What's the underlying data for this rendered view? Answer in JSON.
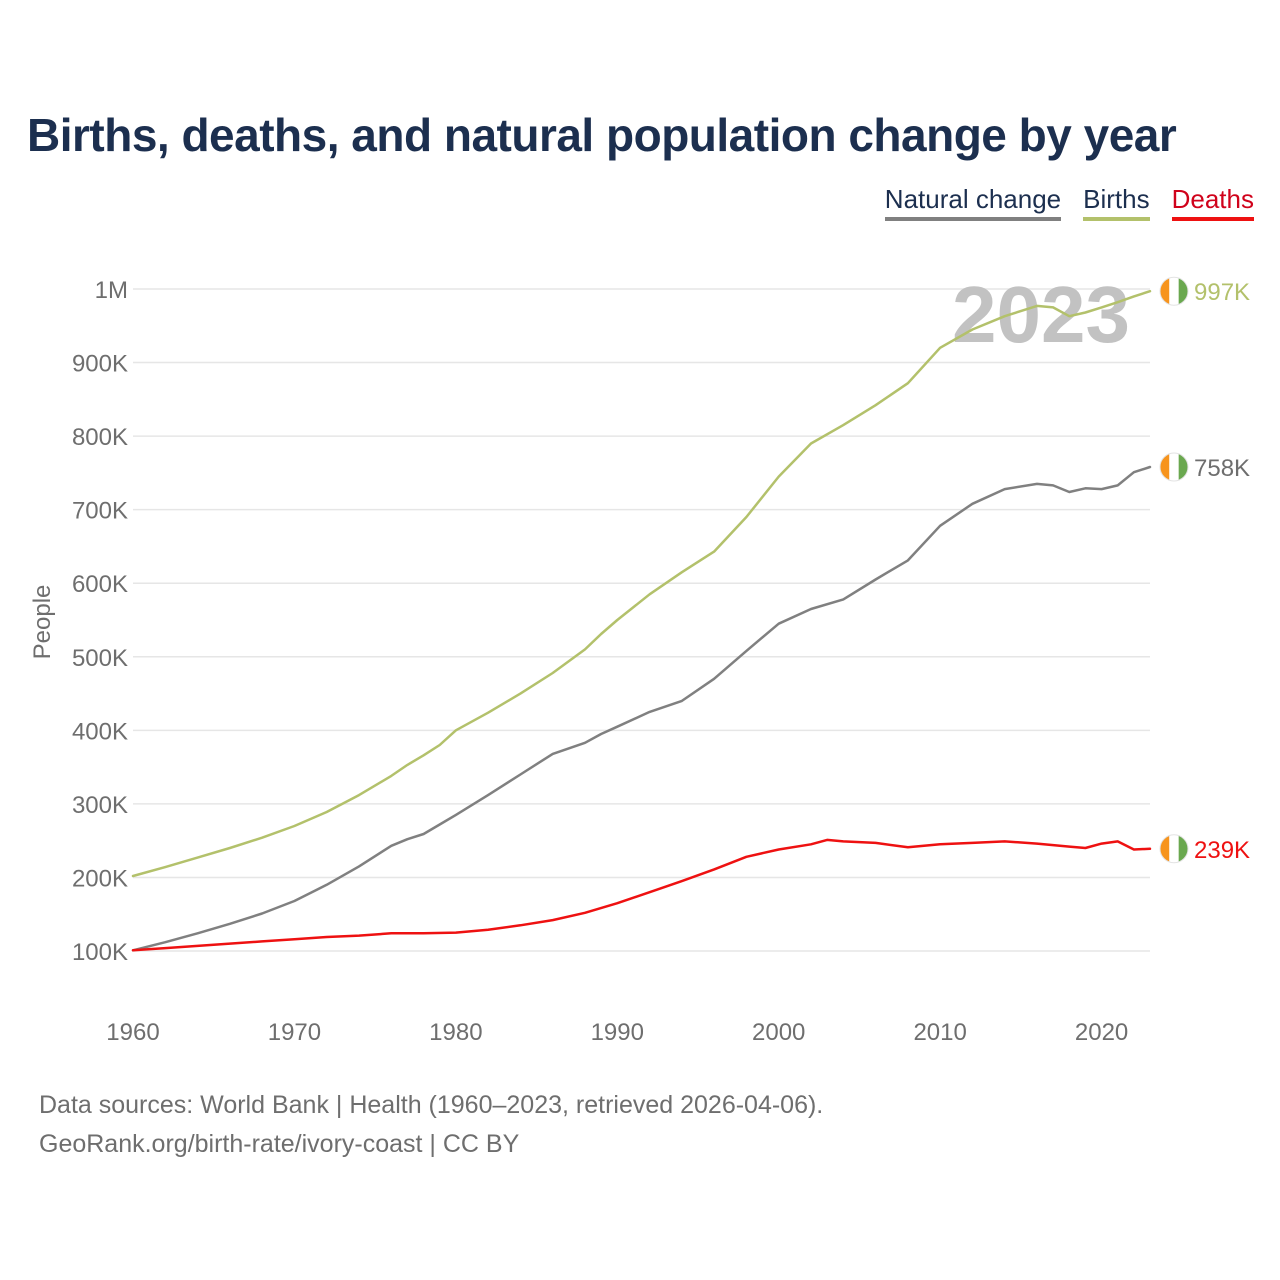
{
  "title": "Births, deaths, and natural population change by year",
  "legend": [
    {
      "label": "Natural change",
      "color": "#808080"
    },
    {
      "label": "Births",
      "color": "#b3c16b"
    },
    {
      "label": "Deaths",
      "color": "#ee1111"
    }
  ],
  "year_label": "2023",
  "footer": {
    "sources": "Data sources: World Bank | Health (1960–2023, retrieved 2026-04-06).",
    "credit": "GeoRank.org/birth-rate/ivory-coast | CC BY"
  },
  "chart_data": {
    "type": "line",
    "title": "Births, deaths, and natural population change by year",
    "xlabel": "",
    "ylabel": "People",
    "xlim": [
      1960,
      2023
    ],
    "ylim": [
      100000,
      1000000
    ],
    "grid": true,
    "legend_position": "top-right",
    "y_ticks": [
      {
        "value": 100000,
        "label": "100K"
      },
      {
        "value": 200000,
        "label": "200K"
      },
      {
        "value": 300000,
        "label": "300K"
      },
      {
        "value": 400000,
        "label": "400K"
      },
      {
        "value": 500000,
        "label": "500K"
      },
      {
        "value": 600000,
        "label": "600K"
      },
      {
        "value": 700000,
        "label": "700K"
      },
      {
        "value": 800000,
        "label": "800K"
      },
      {
        "value": 900000,
        "label": "900K"
      },
      {
        "value": 1000000,
        "label": "1M"
      }
    ],
    "x_ticks": [
      {
        "value": 1960,
        "label": "1960"
      },
      {
        "value": 1970,
        "label": "1970"
      },
      {
        "value": 1980,
        "label": "1980"
      },
      {
        "value": 1990,
        "label": "1990"
      },
      {
        "value": 2000,
        "label": "2000"
      },
      {
        "value": 2010,
        "label": "2010"
      },
      {
        "value": 2020,
        "label": "2020"
      }
    ],
    "series": [
      {
        "name": "Births",
        "color": "#b3c16b",
        "end_label": "997K",
        "points": [
          [
            1960,
            202000
          ],
          [
            1962,
            214000
          ],
          [
            1964,
            227000
          ],
          [
            1966,
            240000
          ],
          [
            1968,
            254000
          ],
          [
            1970,
            270000
          ],
          [
            1972,
            289000
          ],
          [
            1974,
            312000
          ],
          [
            1976,
            338000
          ],
          [
            1977,
            353000
          ],
          [
            1978,
            366000
          ],
          [
            1979,
            380000
          ],
          [
            1980,
            400000
          ],
          [
            1982,
            424000
          ],
          [
            1984,
            450000
          ],
          [
            1986,
            478000
          ],
          [
            1988,
            510000
          ],
          [
            1989,
            531000
          ],
          [
            1990,
            550000
          ],
          [
            1992,
            585000
          ],
          [
            1994,
            615000
          ],
          [
            1996,
            643000
          ],
          [
            1998,
            690000
          ],
          [
            2000,
            745000
          ],
          [
            2002,
            790000
          ],
          [
            2004,
            815000
          ],
          [
            2006,
            842000
          ],
          [
            2008,
            872000
          ],
          [
            2010,
            920000
          ],
          [
            2012,
            945000
          ],
          [
            2014,
            963000
          ],
          [
            2016,
            977000
          ],
          [
            2017,
            975000
          ],
          [
            2018,
            963000
          ],
          [
            2019,
            968000
          ],
          [
            2020,
            975000
          ],
          [
            2021,
            982000
          ],
          [
            2022,
            990000
          ],
          [
            2023,
            997000
          ]
        ]
      },
      {
        "name": "Natural change",
        "color": "#808080",
        "end_label": "758K",
        "points": [
          [
            1960,
            101000
          ],
          [
            1962,
            112000
          ],
          [
            1964,
            124000
          ],
          [
            1966,
            137000
          ],
          [
            1968,
            151000
          ],
          [
            1970,
            168000
          ],
          [
            1972,
            190000
          ],
          [
            1974,
            215000
          ],
          [
            1976,
            243000
          ],
          [
            1977,
            252000
          ],
          [
            1978,
            259000
          ],
          [
            1979,
            272000
          ],
          [
            1980,
            285000
          ],
          [
            1982,
            312000
          ],
          [
            1984,
            340000
          ],
          [
            1986,
            368000
          ],
          [
            1988,
            383000
          ],
          [
            1989,
            395000
          ],
          [
            1990,
            405000
          ],
          [
            1992,
            425000
          ],
          [
            1994,
            440000
          ],
          [
            1996,
            470000
          ],
          [
            1998,
            508000
          ],
          [
            2000,
            545000
          ],
          [
            2002,
            565000
          ],
          [
            2004,
            578000
          ],
          [
            2006,
            605000
          ],
          [
            2008,
            631000
          ],
          [
            2010,
            678000
          ],
          [
            2012,
            708000
          ],
          [
            2014,
            728000
          ],
          [
            2016,
            735000
          ],
          [
            2017,
            733000
          ],
          [
            2018,
            724000
          ],
          [
            2019,
            729000
          ],
          [
            2020,
            728000
          ],
          [
            2021,
            733000
          ],
          [
            2022,
            751000
          ],
          [
            2023,
            758000
          ]
        ]
      },
      {
        "name": "Deaths",
        "color": "#ee1111",
        "end_label": "239K",
        "points": [
          [
            1960,
            101000
          ],
          [
            1962,
            104000
          ],
          [
            1964,
            107000
          ],
          [
            1966,
            110000
          ],
          [
            1968,
            113000
          ],
          [
            1970,
            116000
          ],
          [
            1972,
            119000
          ],
          [
            1974,
            121000
          ],
          [
            1976,
            124000
          ],
          [
            1978,
            124000
          ],
          [
            1980,
            125000
          ],
          [
            1982,
            129000
          ],
          [
            1984,
            135000
          ],
          [
            1986,
            142000
          ],
          [
            1988,
            152000
          ],
          [
            1990,
            165000
          ],
          [
            1992,
            180000
          ],
          [
            1994,
            195000
          ],
          [
            1996,
            211000
          ],
          [
            1998,
            228000
          ],
          [
            2000,
            238000
          ],
          [
            2002,
            245000
          ],
          [
            2003,
            251000
          ],
          [
            2004,
            249000
          ],
          [
            2006,
            247000
          ],
          [
            2008,
            241000
          ],
          [
            2010,
            245000
          ],
          [
            2012,
            247000
          ],
          [
            2014,
            249000
          ],
          [
            2016,
            246000
          ],
          [
            2018,
            242000
          ],
          [
            2019,
            240000
          ],
          [
            2020,
            246000
          ],
          [
            2021,
            249000
          ],
          [
            2022,
            238000
          ],
          [
            2023,
            239000
          ]
        ]
      }
    ]
  }
}
